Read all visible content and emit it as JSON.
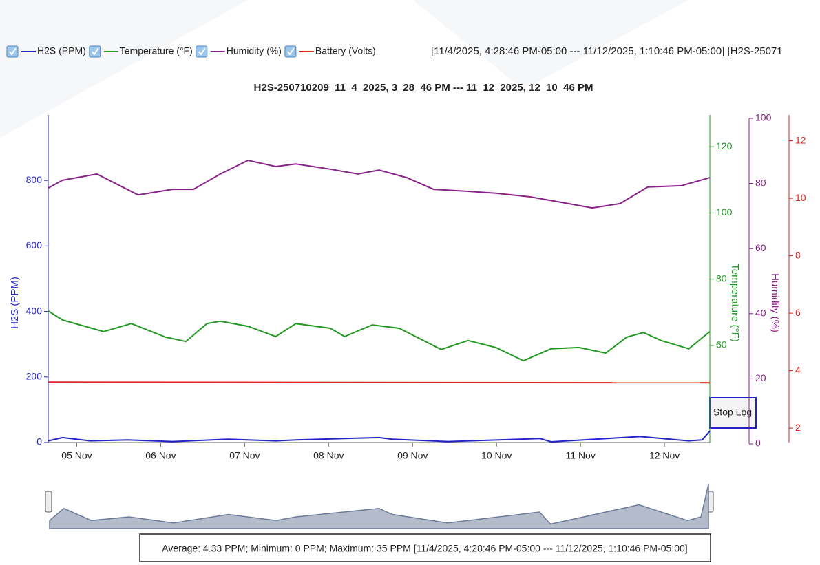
{
  "chart_data": {
    "type": "line",
    "title": "H2S-250710209_11_4_2025, 3_28_46 PM --- 11_12_2025, 12_10_46 PM",
    "range_text": "[11/4/2025, 4:28:46 PM-05:00 --- 11/12/2025, 1:10:46 PM-05:00] [H2S-25071",
    "stats_text": "Average: 4.33 PPM; Minimum: 0 PPM; Maximum: 35 PPM [11/4/2025, 4:28:46 PM-05:00 --- 11/12/2025, 1:10:46 PM-05:00]",
    "button": "Stop Log",
    "ylabel": "H2S (PPM)",
    "y2label": "Temperature (°F)",
    "y3label": "Humidity (%)",
    "xlim": [
      4.66,
      12.54
    ],
    "xticks": [
      {
        "value": 5,
        "label": "05 Nov"
      },
      {
        "value": 6,
        "label": "06 Nov"
      },
      {
        "value": 7,
        "label": "07 Nov"
      },
      {
        "value": 8,
        "label": "08 Nov"
      },
      {
        "value": 9,
        "label": "09 Nov"
      },
      {
        "value": 10,
        "label": "10 Nov"
      },
      {
        "value": 11,
        "label": "11 Nov"
      },
      {
        "value": 12,
        "label": "12 Nov"
      }
    ],
    "ylim": [
      0,
      1000
    ],
    "yticks": [
      0,
      200,
      400,
      600,
      800
    ],
    "y2lim": [
      30.7,
      129.6
    ],
    "y2ticks": [
      60,
      80,
      100,
      120
    ],
    "y3lim": [
      0,
      100
    ],
    "y3ticks": [
      0,
      20,
      40,
      60,
      80,
      100
    ],
    "y4lim": [
      1.5,
      12.9
    ],
    "y4ticks": [
      2,
      4,
      6,
      8,
      10,
      12
    ],
    "series": [
      {
        "name": "H2S (PPM)",
        "color": "#2323c8",
        "axis": "y",
        "x": [
          4.66,
          4.83,
          5.16,
          5.61,
          6.14,
          6.8,
          7.37,
          7.61,
          8.6,
          8.76,
          9.42,
          10.52,
          10.65,
          11.71,
          12.29,
          12.45,
          12.54
        ],
        "values": [
          5,
          15,
          5,
          8,
          3,
          10,
          5,
          8,
          15,
          10,
          3,
          12,
          2,
          18,
          5,
          8,
          35
        ]
      },
      {
        "name": "Temperature (°F)",
        "color": "#229922",
        "axis": "y2",
        "x": [
          4.66,
          4.83,
          5.32,
          5.65,
          6.06,
          6.3,
          6.55,
          6.71,
          7.04,
          7.37,
          7.61,
          8.02,
          8.19,
          8.52,
          8.84,
          9.34,
          9.66,
          9.99,
          10.32,
          10.65,
          10.98,
          11.3,
          11.55,
          11.75,
          11.96,
          12.29,
          12.54
        ],
        "values": [
          70.4,
          67.7,
          64.2,
          66.6,
          62.5,
          61.2,
          66.6,
          67.3,
          65.8,
          62.7,
          66.6,
          65.2,
          62.7,
          66.2,
          65.2,
          58.8,
          61.5,
          59.4,
          55.4,
          59,
          59.4,
          57.7,
          62.5,
          63.9,
          61.5,
          59,
          64.2
        ]
      },
      {
        "name": "Humidity (%)",
        "color": "#882288",
        "axis": "y3",
        "x": [
          4.66,
          4.83,
          5.24,
          5.73,
          6.14,
          6.39,
          6.71,
          7.04,
          7.37,
          7.61,
          8.02,
          8.35,
          8.6,
          8.93,
          9.25,
          9.66,
          9.99,
          10.4,
          10.73,
          11.14,
          11.47,
          11.8,
          12.2,
          12.54
        ],
        "values": [
          78.6,
          81,
          82.9,
          76.5,
          78.2,
          78.2,
          82.9,
          87.1,
          85.2,
          86,
          84.4,
          82.9,
          84.1,
          81.8,
          78.2,
          77.6,
          77,
          75.9,
          74.4,
          72.5,
          73.8,
          78.9,
          79.3,
          81.8
        ]
      },
      {
        "name": "Battery (Volts)",
        "color": "#dd2222",
        "axis": "y4",
        "x": [
          4.66,
          12.54
        ],
        "values": [
          3.6,
          3.58
        ]
      }
    ]
  }
}
